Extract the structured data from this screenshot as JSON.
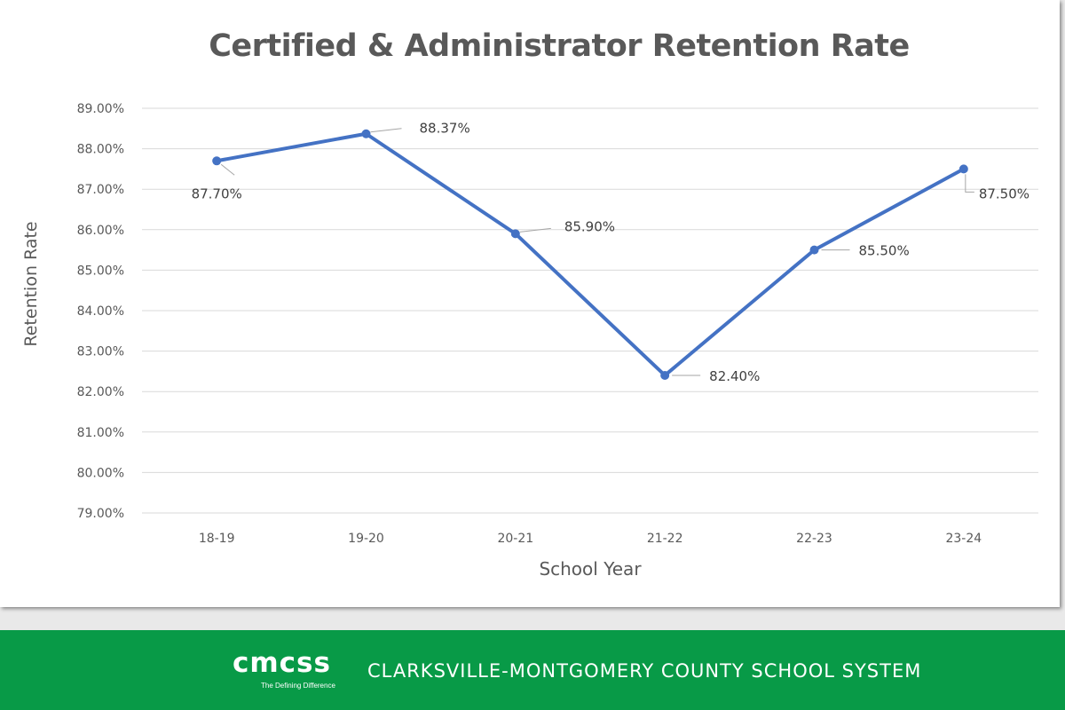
{
  "chart_data": {
    "type": "line",
    "title": "Certified & Administrator Retention Rate",
    "xlabel": "School Year",
    "ylabel": "Retention Rate",
    "categories": [
      "18-19",
      "19-20",
      "20-21",
      "21-22",
      "22-23",
      "23-24"
    ],
    "values": [
      87.7,
      88.37,
      85.9,
      82.4,
      85.5,
      87.5
    ],
    "data_labels": [
      "87.70%",
      "88.37%",
      "85.90%",
      "82.40%",
      "85.50%",
      "87.50%"
    ],
    "ylim": [
      79,
      89
    ],
    "yticks": [
      "79.00%",
      "80.00%",
      "81.00%",
      "82.00%",
      "83.00%",
      "84.00%",
      "85.00%",
      "86.00%",
      "87.00%",
      "88.00%",
      "89.00%"
    ],
    "grid": true,
    "line_color": "#4472c4"
  },
  "footer": {
    "logo_text": "cmcss",
    "logo_tagline": "The Defining Difference",
    "org_name": "CLARKSVILLE-MONTGOMERY COUNTY SCHOOL SYSTEM",
    "color": "#089a47"
  }
}
